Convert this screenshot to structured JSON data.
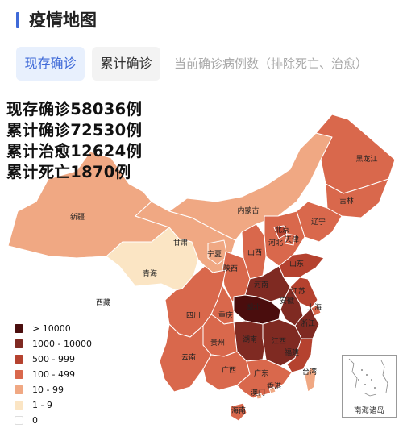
{
  "header": {
    "title": "疫情地图"
  },
  "tabs": {
    "current_label": "现存确诊",
    "total_label": "累计确诊",
    "description": "当前确诊病例数（排除死亡、治愈）"
  },
  "stats": {
    "current": "现存确诊58036例",
    "total": "累计确诊72530例",
    "cured": "累计治愈12624例",
    "dead": "累计死亡1870例"
  },
  "legend": [
    {
      "label": "> 10000",
      "color": "#4a0d0d"
    },
    {
      "label": "1000 - 10000",
      "color": "#7f2a22"
    },
    {
      "label": "500 - 999",
      "color": "#b5422f"
    },
    {
      "label": "100 - 499",
      "color": "#d9684c"
    },
    {
      "label": "10 - 99",
      "color": "#f0a883"
    },
    {
      "label": "1 - 9",
      "color": "#fbe5c4"
    },
    {
      "label": "0",
      "color": "#ffffff"
    }
  ],
  "regions": {
    "heilongjiang": "黑龙江",
    "jilin": "吉林",
    "liaoning": "辽宁",
    "neimenggu": "内蒙古",
    "beijing": "北京",
    "tianjin": "天津",
    "hebei": "河北",
    "shanxi": "山西",
    "shandong": "山东",
    "xinjiang": "新疆",
    "gansu": "甘肃",
    "ningxia": "宁夏",
    "qinghai": "青海",
    "shaanxi": "陕西",
    "henan": "河南",
    "jiangsu": "江苏",
    "anhui": "安徽",
    "shanghai": "上海",
    "xizang": "西藏",
    "sichuan": "四川",
    "chongqing": "重庆",
    "hubei": "湖北",
    "zhejiang": "浙江",
    "jiangxi": "江西",
    "hunan": "湖南",
    "guizhou": "贵州",
    "yunnan": "云南",
    "fujian": "福建",
    "taiwan": "台湾",
    "guangxi": "广西",
    "guangdong": "广东",
    "xianggang": "香港",
    "aomen": "澳门",
    "hainan": "海南",
    "nanhai": "南海诸岛"
  }
}
